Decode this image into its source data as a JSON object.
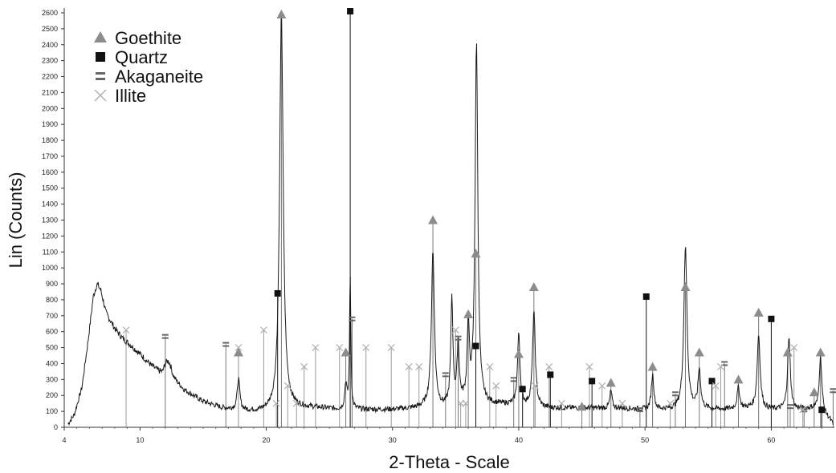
{
  "chart_data": {
    "type": "line",
    "title": "",
    "xlabel": "2-Theta - Scale",
    "ylabel": "Lin (Counts)",
    "xlim": [
      4,
      65
    ],
    "ylim": [
      0,
      2600
    ],
    "x_ticks": [
      4,
      10,
      20,
      30,
      40,
      50,
      60
    ],
    "y_ticks": [
      0,
      100,
      200,
      300,
      400,
      500,
      600,
      700,
      800,
      900,
      1000,
      1100,
      1200,
      1300,
      1400,
      1500,
      1600,
      1700,
      1800,
      1900,
      2000,
      2100,
      2200,
      2300,
      2400,
      2500,
      2600
    ],
    "legend": [
      {
        "name": "Goethite",
        "marker": "triangle",
        "color": "#8c8c8c"
      },
      {
        "name": "Quartz",
        "marker": "square",
        "color": "#111111"
      },
      {
        "name": "Akaganeite",
        "marker": "equals",
        "color": "#666666"
      },
      {
        "name": "Illite",
        "marker": "cross",
        "color": "#b0b0b0"
      }
    ],
    "legend_position": "top-left",
    "pattern": {
      "baseline": [
        [
          4.3,
          20
        ],
        [
          4.8,
          80
        ],
        [
          5.4,
          250
        ],
        [
          5.9,
          550
        ],
        [
          6.3,
          820
        ],
        [
          6.6,
          900
        ],
        [
          6.9,
          860
        ],
        [
          7.3,
          720
        ],
        [
          8.0,
          620
        ],
        [
          8.6,
          560
        ],
        [
          9.2,
          520
        ],
        [
          10.0,
          460
        ],
        [
          11.0,
          380
        ],
        [
          11.8,
          330
        ],
        [
          12.2,
          420
        ],
        [
          12.6,
          300
        ],
        [
          13.5,
          230
        ],
        [
          15.0,
          160
        ],
        [
          16.5,
          120
        ],
        [
          17.5,
          110
        ],
        [
          18.5,
          100
        ],
        [
          19.5,
          95
        ],
        [
          20.5,
          100
        ],
        [
          22.0,
          120
        ],
        [
          24.0,
          120
        ],
        [
          26.0,
          110
        ],
        [
          28.0,
          110
        ],
        [
          30.0,
          110
        ],
        [
          32.0,
          120
        ],
        [
          33.0,
          140
        ],
        [
          34.0,
          120
        ],
        [
          35.0,
          140
        ],
        [
          36.0,
          160
        ],
        [
          37.5,
          140
        ],
        [
          39.0,
          140
        ],
        [
          40.5,
          130
        ],
        [
          42.0,
          120
        ],
        [
          44.0,
          120
        ],
        [
          46.0,
          120
        ],
        [
          48.0,
          120
        ],
        [
          50.0,
          110
        ],
        [
          52.0,
          110
        ],
        [
          54.0,
          120
        ],
        [
          56.0,
          110
        ],
        [
          58.0,
          120
        ],
        [
          60.0,
          110
        ],
        [
          62.0,
          110
        ],
        [
          63.5,
          120
        ],
        [
          64.6,
          50
        ],
        [
          64.9,
          10
        ]
      ],
      "peaks": [
        {
          "x": 12.2,
          "y": 410,
          "w": 0.25
        },
        {
          "x": 17.8,
          "y": 300,
          "w": 0.12
        },
        {
          "x": 21.2,
          "y": 2600,
          "w": 0.17
        },
        {
          "x": 26.3,
          "y": 270,
          "w": 0.1
        },
        {
          "x": 26.65,
          "y": 950,
          "w": 0.06
        },
        {
          "x": 33.2,
          "y": 1100,
          "w": 0.14
        },
        {
          "x": 34.7,
          "y": 800,
          "w": 0.1
        },
        {
          "x": 35.2,
          "y": 520,
          "w": 0.1
        },
        {
          "x": 36.0,
          "y": 620,
          "w": 0.1
        },
        {
          "x": 36.65,
          "y": 2400,
          "w": 0.13
        },
        {
          "x": 40.0,
          "y": 580,
          "w": 0.12
        },
        {
          "x": 41.2,
          "y": 720,
          "w": 0.13
        },
        {
          "x": 47.3,
          "y": 230,
          "w": 0.1
        },
        {
          "x": 50.6,
          "y": 330,
          "w": 0.12
        },
        {
          "x": 53.2,
          "y": 1130,
          "w": 0.15
        },
        {
          "x": 54.3,
          "y": 360,
          "w": 0.12
        },
        {
          "x": 57.4,
          "y": 250,
          "w": 0.12
        },
        {
          "x": 59.0,
          "y": 580,
          "w": 0.14
        },
        {
          "x": 61.4,
          "y": 560,
          "w": 0.13
        },
        {
          "x": 63.9,
          "y": 450,
          "w": 0.12
        }
      ]
    },
    "reference_lines": [
      {
        "phase": "Goethite",
        "x": 17.8,
        "y": 470
      },
      {
        "phase": "Goethite",
        "x": 21.2,
        "y": 2590
      },
      {
        "phase": "Goethite",
        "x": 26.3,
        "y": 470
      },
      {
        "phase": "Goethite",
        "x": 33.2,
        "y": 1300
      },
      {
        "phase": "Goethite",
        "x": 36.0,
        "y": 710
      },
      {
        "phase": "Goethite",
        "x": 36.6,
        "y": 1090
      },
      {
        "phase": "Goethite",
        "x": 40.0,
        "y": 460
      },
      {
        "phase": "Goethite",
        "x": 41.2,
        "y": 880
      },
      {
        "phase": "Goethite",
        "x": 45.0,
        "y": 130
      },
      {
        "phase": "Goethite",
        "x": 47.3,
        "y": 280
      },
      {
        "phase": "Goethite",
        "x": 50.6,
        "y": 380
      },
      {
        "phase": "Goethite",
        "x": 53.2,
        "y": 880
      },
      {
        "phase": "Goethite",
        "x": 54.3,
        "y": 470
      },
      {
        "phase": "Goethite",
        "x": 57.4,
        "y": 300
      },
      {
        "phase": "Goethite",
        "x": 59.0,
        "y": 720
      },
      {
        "phase": "Goethite",
        "x": 61.3,
        "y": 470
      },
      {
        "phase": "Goethite",
        "x": 63.4,
        "y": 220
      },
      {
        "phase": "Goethite",
        "x": 63.9,
        "y": 470
      },
      {
        "phase": "Quartz",
        "x": 20.9,
        "y": 840
      },
      {
        "phase": "Quartz",
        "x": 26.65,
        "y": 2610
      },
      {
        "phase": "Quartz",
        "x": 36.6,
        "y": 510
      },
      {
        "phase": "Quartz",
        "x": 40.3,
        "y": 240
      },
      {
        "phase": "Quartz",
        "x": 42.5,
        "y": 330
      },
      {
        "phase": "Quartz",
        "x": 45.8,
        "y": 290
      },
      {
        "phase": "Quartz",
        "x": 50.1,
        "y": 820
      },
      {
        "phase": "Quartz",
        "x": 55.3,
        "y": 290
      },
      {
        "phase": "Quartz",
        "x": 60.0,
        "y": 680
      },
      {
        "phase": "Quartz",
        "x": 64.0,
        "y": 110
      },
      {
        "phase": "Akaganeite",
        "x": 12.0,
        "y": 570
      },
      {
        "phase": "Akaganeite",
        "x": 16.8,
        "y": 520
      },
      {
        "phase": "Akaganeite",
        "x": 26.8,
        "y": 680
      },
      {
        "phase": "Akaganeite",
        "x": 34.2,
        "y": 330
      },
      {
        "phase": "Akaganeite",
        "x": 35.2,
        "y": 560
      },
      {
        "phase": "Akaganeite",
        "x": 39.6,
        "y": 300
      },
      {
        "phase": "Akaganeite",
        "x": 49.6,
        "y": 110
      },
      {
        "phase": "Akaganeite",
        "x": 52.4,
        "y": 210
      },
      {
        "phase": "Akaganeite",
        "x": 56.3,
        "y": 400
      },
      {
        "phase": "Akaganeite",
        "x": 61.5,
        "y": 130
      },
      {
        "phase": "Akaganeite",
        "x": 62.6,
        "y": 110
      },
      {
        "phase": "Akaganeite",
        "x": 64.9,
        "y": 230
      },
      {
        "phase": "Illite",
        "x": 8.9,
        "y": 610
      },
      {
        "phase": "Illite",
        "x": 17.8,
        "y": 500
      },
      {
        "phase": "Illite",
        "x": 19.8,
        "y": 610
      },
      {
        "phase": "Illite",
        "x": 20.8,
        "y": 150
      },
      {
        "phase": "Illite",
        "x": 21.7,
        "y": 260
      },
      {
        "phase": "Illite",
        "x": 22.4,
        "y": 150
      },
      {
        "phase": "Illite",
        "x": 23.0,
        "y": 380
      },
      {
        "phase": "Illite",
        "x": 23.9,
        "y": 500
      },
      {
        "phase": "Illite",
        "x": 25.8,
        "y": 500
      },
      {
        "phase": "Illite",
        "x": 27.9,
        "y": 500
      },
      {
        "phase": "Illite",
        "x": 29.9,
        "y": 500
      },
      {
        "phase": "Illite",
        "x": 31.3,
        "y": 380
      },
      {
        "phase": "Illite",
        "x": 32.1,
        "y": 380
      },
      {
        "phase": "Illite",
        "x": 35.0,
        "y": 610
      },
      {
        "phase": "Illite",
        "x": 35.4,
        "y": 150
      },
      {
        "phase": "Illite",
        "x": 35.8,
        "y": 150
      },
      {
        "phase": "Illite",
        "x": 37.7,
        "y": 380
      },
      {
        "phase": "Illite",
        "x": 38.2,
        "y": 260
      },
      {
        "phase": "Illite",
        "x": 41.3,
        "y": 260
      },
      {
        "phase": "Illite",
        "x": 42.4,
        "y": 380
      },
      {
        "phase": "Illite",
        "x": 43.4,
        "y": 150
      },
      {
        "phase": "Illite",
        "x": 45.6,
        "y": 380
      },
      {
        "phase": "Illite",
        "x": 46.6,
        "y": 260
      },
      {
        "phase": "Illite",
        "x": 48.2,
        "y": 150
      },
      {
        "phase": "Illite",
        "x": 52.0,
        "y": 150
      },
      {
        "phase": "Illite",
        "x": 55.6,
        "y": 260
      },
      {
        "phase": "Illite",
        "x": 56.0,
        "y": 380
      },
      {
        "phase": "Illite",
        "x": 61.8,
        "y": 500
      },
      {
        "phase": "Illite",
        "x": 62.5,
        "y": 110
      }
    ]
  }
}
